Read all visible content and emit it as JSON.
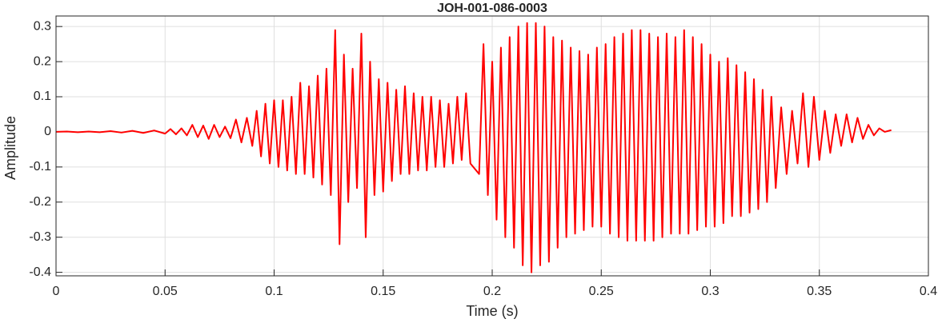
{
  "chart_data": {
    "type": "line",
    "title": "JOH-001-086-0003",
    "x_label": "Time (s)",
    "y_label": "Amplitude",
    "x": [
      0,
      0.005,
      0.01,
      0.015,
      0.02,
      0.025,
      0.03,
      0.035,
      0.04,
      0.045,
      0.05,
      0.0525,
      0.055,
      0.0575,
      0.06,
      0.0625,
      0.065,
      0.0675,
      0.07,
      0.0725,
      0.075,
      0.0775,
      0.08,
      0.0825,
      0.085,
      0.0875,
      0.09,
      0.092,
      0.094,
      0.096,
      0.098,
      0.1,
      0.102,
      0.104,
      0.106,
      0.108,
      0.11,
      0.112,
      0.114,
      0.116,
      0.118,
      0.12,
      0.122,
      0.124,
      0.126,
      0.128,
      0.13,
      0.132,
      0.134,
      0.136,
      0.138,
      0.14,
      0.142,
      0.144,
      0.146,
      0.148,
      0.15,
      0.152,
      0.154,
      0.156,
      0.158,
      0.16,
      0.162,
      0.164,
      0.166,
      0.168,
      0.17,
      0.172,
      0.174,
      0.176,
      0.178,
      0.18,
      0.182,
      0.184,
      0.186,
      0.188,
      0.19,
      0.194,
      0.196,
      0.198,
      0.2,
      0.202,
      0.204,
      0.206,
      0.208,
      0.21,
      0.212,
      0.214,
      0.216,
      0.218,
      0.22,
      0.222,
      0.224,
      0.226,
      0.228,
      0.23,
      0.232,
      0.234,
      0.236,
      0.238,
      0.24,
      0.242,
      0.244,
      0.246,
      0.248,
      0.25,
      0.252,
      0.254,
      0.256,
      0.258,
      0.26,
      0.262,
      0.264,
      0.266,
      0.268,
      0.27,
      0.272,
      0.274,
      0.276,
      0.278,
      0.28,
      0.282,
      0.284,
      0.286,
      0.288,
      0.29,
      0.292,
      0.294,
      0.296,
      0.298,
      0.3,
      0.302,
      0.304,
      0.306,
      0.308,
      0.31,
      0.312,
      0.314,
      0.316,
      0.318,
      0.32,
      0.322,
      0.324,
      0.326,
      0.328,
      0.33,
      0.3325,
      0.335,
      0.3375,
      0.34,
      0.3425,
      0.345,
      0.3475,
      0.35,
      0.3525,
      0.355,
      0.3575,
      0.36,
      0.3625,
      0.365,
      0.3675,
      0.37,
      0.3725,
      0.375,
      0.3775,
      0.38,
      0.383
    ],
    "series": [
      {
        "name": "Amplitude",
        "color": "#ff0000",
        "values": [
          0,
          0.001,
          -0.001,
          0.001,
          -0.001,
          0.002,
          -0.002,
          0.003,
          -0.003,
          0.004,
          -0.005,
          0.008,
          -0.007,
          0.01,
          -0.01,
          0.02,
          -0.015,
          0.018,
          -0.02,
          0.02,
          -0.015,
          0.015,
          -0.018,
          0.035,
          -0.03,
          0.04,
          -0.04,
          0.06,
          -0.07,
          0.08,
          -0.09,
          0.09,
          -0.1,
          0.09,
          -0.11,
          0.1,
          -0.12,
          0.14,
          -0.12,
          0.13,
          -0.13,
          0.16,
          -0.15,
          0.18,
          -0.18,
          0.29,
          -0.32,
          0.22,
          -0.2,
          0.18,
          -0.16,
          0.28,
          -0.3,
          0.2,
          -0.18,
          0.15,
          -0.17,
          0.14,
          -0.14,
          0.12,
          -0.12,
          0.13,
          -0.12,
          0.11,
          -0.11,
          0.1,
          -0.11,
          0.1,
          -0.1,
          0.09,
          -0.1,
          0.08,
          -0.09,
          0.1,
          -0.08,
          0.11,
          -0.09,
          -0.12,
          0.25,
          -0.18,
          0.2,
          -0.25,
          0.24,
          -0.3,
          0.27,
          -0.33,
          0.3,
          -0.38,
          0.31,
          -0.4,
          0.31,
          -0.38,
          0.3,
          -0.37,
          0.27,
          -0.33,
          0.26,
          -0.3,
          0.24,
          -0.29,
          0.23,
          -0.28,
          0.22,
          -0.27,
          0.24,
          -0.27,
          0.25,
          -0.29,
          0.27,
          -0.3,
          0.28,
          -0.31,
          0.29,
          -0.31,
          0.29,
          -0.31,
          0.28,
          -0.31,
          0.27,
          -0.3,
          0.28,
          -0.29,
          0.27,
          -0.29,
          0.29,
          -0.29,
          0.27,
          -0.28,
          0.25,
          -0.27,
          0.22,
          -0.27,
          0.2,
          -0.26,
          0.21,
          -0.24,
          0.19,
          -0.24,
          0.17,
          -0.23,
          0.15,
          -0.22,
          0.12,
          -0.2,
          0.1,
          -0.16,
          0.07,
          -0.12,
          0.06,
          -0.09,
          0.11,
          -0.1,
          0.1,
          -0.08,
          0.06,
          -0.06,
          0.05,
          -0.04,
          0.05,
          -0.03,
          0.04,
          -0.02,
          0.02,
          -0.01,
          0.01,
          0,
          0.005
        ]
      }
    ],
    "xlim": [
      0,
      0.4
    ],
    "xticks": [
      0,
      0.05,
      0.1,
      0.15,
      0.2,
      0.25,
      0.3,
      0.35,
      0.4
    ],
    "ylim": [
      -0.41,
      0.33
    ],
    "yticks": [
      -0.4,
      -0.3,
      -0.2,
      -0.1,
      0,
      0.1,
      0.2,
      0.3
    ],
    "grid": true
  }
}
